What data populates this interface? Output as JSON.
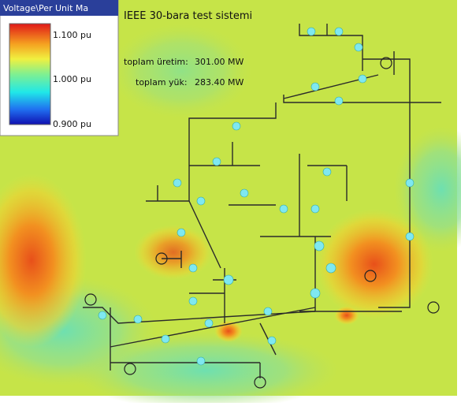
{
  "legend": {
    "title": "Voltage\\Per Unit Ma",
    "labels": [
      "1.100 pu",
      "1.000 pu",
      "0.900 pu"
    ]
  },
  "header": {
    "title": "IEEE 30-bara test sistemi"
  },
  "summary": {
    "rows": [
      [
        "toplam üretim:",
        "301.00 MW"
      ],
      [
        "toplam yük:",
        "283.40 MW"
      ]
    ]
  }
}
